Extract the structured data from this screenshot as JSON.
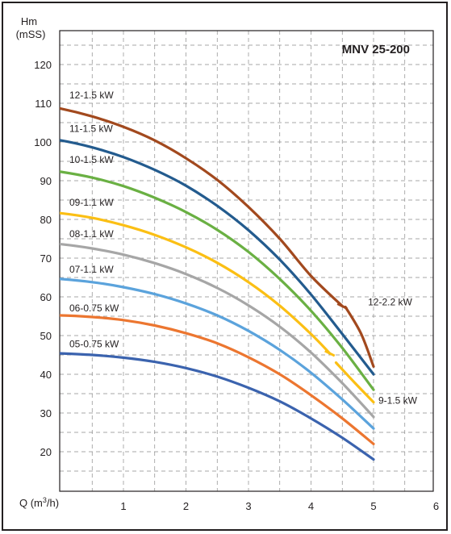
{
  "chart_data": {
    "type": "line",
    "title": "MNV 25-200",
    "ylabel_line1": "Hm",
    "ylabel_line2": "(mSS)",
    "xlabel_prefix": "Q (m",
    "xlabel_sup": "3",
    "xlabel_suffix": "/h)",
    "xlim": [
      -0.5,
      6
    ],
    "ylim": [
      10,
      130
    ],
    "x_ticks": [
      "1",
      "2",
      "3",
      "4",
      "5",
      "6"
    ],
    "y_ticks": [
      "20",
      "30",
      "40",
      "50",
      "60",
      "70",
      "80",
      "90",
      "100",
      "110",
      "120"
    ],
    "grid": true,
    "series": [
      {
        "name": "05-0.75 kW",
        "color": "#3b63ae",
        "points": [
          [
            -0.5,
            45.7
          ],
          [
            0,
            45.4
          ],
          [
            0.5,
            45.0
          ],
          [
            1,
            44.3
          ],
          [
            1.5,
            43.2
          ],
          [
            2,
            41.6
          ],
          [
            2.5,
            39.4
          ],
          [
            3,
            36.5
          ],
          [
            3.5,
            33.0
          ],
          [
            4,
            28.6
          ],
          [
            4.5,
            23.6
          ],
          [
            5,
            18.0
          ]
        ]
      },
      {
        "name": "06-0.75 kW",
        "color": "#ec7630",
        "points": [
          [
            -0.5,
            55.0
          ],
          [
            0,
            55.2
          ],
          [
            0.5,
            54.8
          ],
          [
            1,
            54.0
          ],
          [
            1.5,
            52.6
          ],
          [
            2,
            50.6
          ],
          [
            2.5,
            48.0
          ],
          [
            3,
            44.4
          ],
          [
            3.5,
            40.0
          ],
          [
            4,
            34.6
          ],
          [
            4.5,
            28.6
          ],
          [
            5,
            22.0
          ]
        ]
      },
      {
        "name": "07-1.1 kW",
        "color": "#5ba3dc",
        "points": [
          [
            -0.5,
            65.0
          ],
          [
            0,
            64.6
          ],
          [
            0.5,
            63.8
          ],
          [
            1,
            62.5
          ],
          [
            1.5,
            60.7
          ],
          [
            2,
            58.3
          ],
          [
            2.5,
            55.2
          ],
          [
            3,
            51.2
          ],
          [
            3.5,
            46.3
          ],
          [
            4,
            40.4
          ],
          [
            4.5,
            33.5
          ],
          [
            5,
            26.0
          ]
        ]
      },
      {
        "name": "08-1.1 kW",
        "color": "#a6a6a6",
        "points": [
          [
            -0.5,
            74.2
          ],
          [
            0,
            73.6
          ],
          [
            0.5,
            72.5
          ],
          [
            1,
            70.9
          ],
          [
            1.5,
            68.7
          ],
          [
            2,
            65.9
          ],
          [
            2.5,
            62.3
          ],
          [
            3,
            57.8
          ],
          [
            3.5,
            52.3
          ],
          [
            4,
            45.6
          ],
          [
            4.5,
            37.7
          ],
          [
            5,
            29.0
          ]
        ]
      },
      {
        "name": "09-1.1 kW",
        "color": "#fbbf14",
        "points": [
          [
            -0.5,
            82.3
          ],
          [
            0,
            81.6
          ],
          [
            0.5,
            80.4
          ],
          [
            1,
            78.5
          ],
          [
            1.5,
            76.0
          ],
          [
            2,
            72.8
          ],
          [
            2.5,
            68.8
          ],
          [
            3,
            63.8
          ],
          [
            3.5,
            57.7
          ],
          [
            4,
            50.4
          ],
          [
            4.3,
            45.4
          ]
        ]
      },
      {
        "name": "9-1.5 kW",
        "color": "#fbbf14",
        "points": [
          [
            4.4,
            43.0
          ],
          [
            4.7,
            37.8
          ],
          [
            5,
            32.8
          ]
        ]
      },
      {
        "name": "10-1.5 kW",
        "color": "#6ab043",
        "points": [
          [
            -0.5,
            93.3
          ],
          [
            0,
            92.3
          ],
          [
            0.5,
            90.8
          ],
          [
            1,
            88.6
          ],
          [
            1.5,
            85.6
          ],
          [
            2,
            81.9
          ],
          [
            2.5,
            77.3
          ],
          [
            3,
            71.6
          ],
          [
            3.5,
            64.6
          ],
          [
            4,
            56.4
          ],
          [
            4.5,
            46.8
          ],
          [
            5,
            36.0
          ]
        ]
      },
      {
        "name": "11-1.5 kW",
        "color": "#235b8e",
        "points": [
          [
            -0.5,
            101.4
          ],
          [
            0,
            100.4
          ],
          [
            0.5,
            98.6
          ],
          [
            1,
            96.1
          ],
          [
            1.5,
            92.8
          ],
          [
            2,
            88.7
          ],
          [
            2.5,
            83.5
          ],
          [
            3,
            77.2
          ],
          [
            3.5,
            69.6
          ],
          [
            4,
            60.6
          ],
          [
            4.5,
            50.4
          ],
          [
            5,
            40.0
          ]
        ]
      },
      {
        "name": "12-1.5 kW",
        "color": "#a2491e",
        "points": [
          [
            -0.5,
            110.0
          ],
          [
            0,
            108.6
          ],
          [
            0.5,
            106.6
          ],
          [
            1,
            103.9
          ],
          [
            1.5,
            100.4
          ],
          [
            2,
            95.8
          ],
          [
            2.5,
            90.2
          ],
          [
            3,
            83.2
          ],
          [
            3.5,
            75.0
          ],
          [
            4,
            65.4
          ],
          [
            4.5,
            57.6
          ]
        ]
      },
      {
        "name": "12-2.2 kW",
        "color": "#a2491e",
        "points": [
          [
            4.55,
            57.4
          ],
          [
            4.8,
            50.5
          ],
          [
            5,
            42.0
          ]
        ]
      }
    ]
  }
}
